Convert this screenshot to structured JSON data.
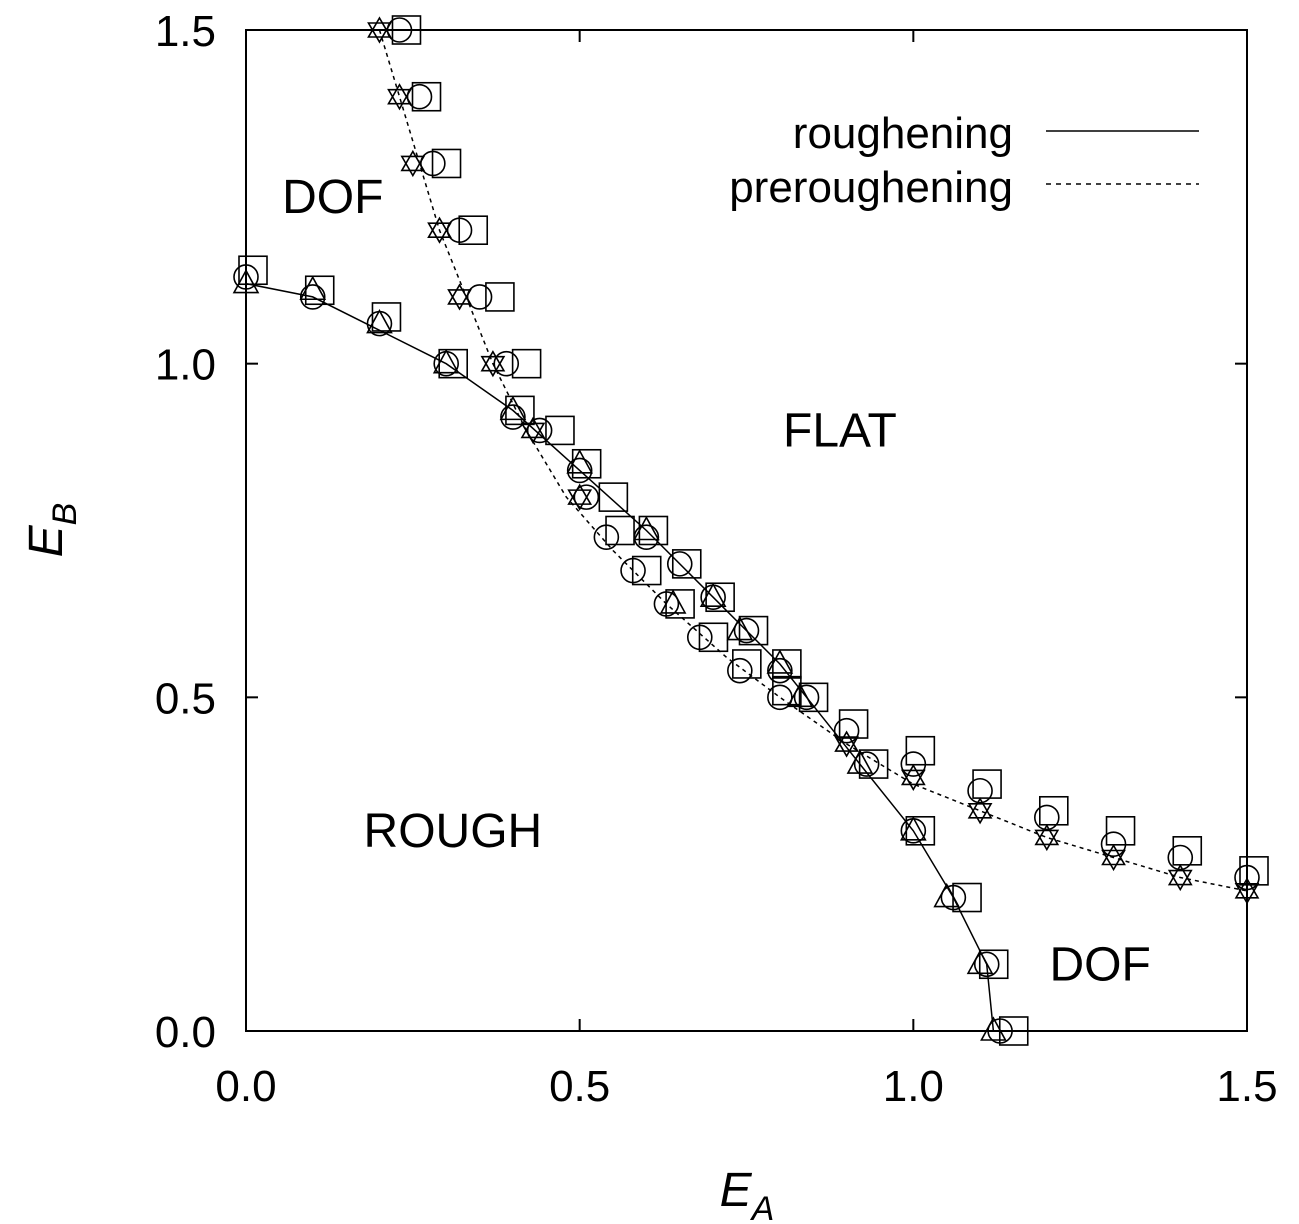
{
  "chart_data": {
    "type": "scatter",
    "xlabel": "E",
    "xlabel_sub": "A",
    "ylabel": "E",
    "ylabel_sub": "B",
    "xlim": [
      0,
      1.5
    ],
    "ylim": [
      0,
      1.5
    ],
    "x_ticks": [
      "0.0",
      "0.5",
      "1.0",
      "1.5"
    ],
    "y_ticks": [
      "0.0",
      "0.5",
      "1.0",
      "1.5"
    ],
    "grid": false,
    "legend_position": "top-right",
    "regions": [
      {
        "label": "DOF",
        "x": 0.13,
        "y": 1.25
      },
      {
        "label": "FLAT",
        "x": 0.89,
        "y": 0.9
      },
      {
        "label": "ROUGH",
        "x": 0.31,
        "y": 0.3
      },
      {
        "label": "DOF",
        "x": 1.28,
        "y": 0.1
      }
    ],
    "series": [
      {
        "name": "roughening",
        "line": "solid",
        "curve_x": [
          0.0,
          0.1,
          0.2,
          0.3,
          0.4,
          0.5,
          0.6,
          0.7,
          0.75,
          0.8,
          0.84,
          0.88,
          0.92,
          1.0,
          1.06,
          1.11,
          1.12
        ],
        "curve_y": [
          1.12,
          1.1,
          1.05,
          1.0,
          0.93,
          0.84,
          0.75,
          0.65,
          0.6,
          0.55,
          0.5,
          0.45,
          0.4,
          0.3,
          0.2,
          0.1,
          0.0
        ],
        "squares": [
          [
            0.0,
            1.14
          ],
          [
            0.1,
            1.11
          ],
          [
            0.2,
            1.07
          ],
          [
            0.3,
            1.0
          ],
          [
            0.4,
            0.93
          ],
          [
            0.5,
            0.85
          ],
          [
            0.6,
            0.75
          ],
          [
            0.65,
            0.7
          ],
          [
            0.7,
            0.65
          ],
          [
            0.75,
            0.6
          ],
          [
            0.8,
            0.55
          ],
          [
            0.84,
            0.5
          ],
          [
            0.93,
            0.4
          ],
          [
            1.0,
            0.3
          ],
          [
            1.07,
            0.2
          ],
          [
            1.11,
            0.1
          ],
          [
            1.14,
            0.0
          ]
        ],
        "circles": [
          [
            0.0,
            1.13
          ],
          [
            0.1,
            1.1
          ],
          [
            0.2,
            1.06
          ],
          [
            0.3,
            1.0
          ],
          [
            0.4,
            0.92
          ],
          [
            0.5,
            0.84
          ],
          [
            0.6,
            0.74
          ],
          [
            0.65,
            0.7
          ],
          [
            0.7,
            0.65
          ],
          [
            0.75,
            0.6
          ],
          [
            0.8,
            0.54
          ],
          [
            0.84,
            0.5
          ],
          [
            0.93,
            0.4
          ],
          [
            1.0,
            0.3
          ],
          [
            1.06,
            0.2
          ],
          [
            1.11,
            0.1
          ],
          [
            1.13,
            0.0
          ]
        ],
        "triangles": [
          [
            0.0,
            1.12
          ],
          [
            0.1,
            1.11
          ],
          [
            0.2,
            1.06
          ],
          [
            0.3,
            1.0
          ],
          [
            0.4,
            0.93
          ],
          [
            0.5,
            0.85
          ],
          [
            0.6,
            0.75
          ],
          [
            0.64,
            0.64
          ],
          [
            0.7,
            0.65
          ],
          [
            0.74,
            0.6
          ],
          [
            0.8,
            0.55
          ],
          [
            0.83,
            0.5
          ],
          [
            0.92,
            0.4
          ],
          [
            1.0,
            0.3
          ],
          [
            1.05,
            0.2
          ],
          [
            1.1,
            0.1
          ],
          [
            1.12,
            0.0
          ]
        ]
      },
      {
        "name": "preroughening",
        "line": "dashed",
        "curve_x": [
          0.2,
          0.23,
          0.26,
          0.29,
          0.33,
          0.37,
          0.42,
          0.48,
          0.55,
          0.63,
          0.72,
          0.8,
          0.9,
          1.0,
          1.1,
          1.2,
          1.3,
          1.4,
          1.5
        ],
        "curve_y": [
          1.5,
          1.4,
          1.3,
          1.2,
          1.1,
          1.0,
          0.9,
          0.8,
          0.72,
          0.64,
          0.56,
          0.5,
          0.43,
          0.37,
          0.33,
          0.29,
          0.26,
          0.23,
          0.21
        ],
        "squares": [
          [
            0.23,
            1.5
          ],
          [
            0.26,
            1.4
          ],
          [
            0.29,
            1.3
          ],
          [
            0.33,
            1.2
          ],
          [
            0.37,
            1.1
          ],
          [
            0.41,
            1.0
          ],
          [
            0.46,
            0.9
          ],
          [
            0.54,
            0.8
          ],
          [
            0.55,
            0.75
          ],
          [
            0.59,
            0.69
          ],
          [
            0.64,
            0.64
          ],
          [
            0.69,
            0.59
          ],
          [
            0.74,
            0.55
          ],
          [
            0.8,
            0.51
          ],
          [
            0.9,
            0.46
          ],
          [
            1.0,
            0.42
          ],
          [
            1.1,
            0.37
          ],
          [
            1.2,
            0.33
          ],
          [
            1.3,
            0.3
          ],
          [
            1.4,
            0.27
          ],
          [
            1.5,
            0.24
          ]
        ],
        "circles": [
          [
            0.23,
            1.5
          ],
          [
            0.26,
            1.4
          ],
          [
            0.28,
            1.3
          ],
          [
            0.32,
            1.2
          ],
          [
            0.35,
            1.1
          ],
          [
            0.39,
            1.0
          ],
          [
            0.44,
            0.9
          ],
          [
            0.51,
            0.8
          ],
          [
            0.54,
            0.74
          ],
          [
            0.58,
            0.69
          ],
          [
            0.63,
            0.64
          ],
          [
            0.68,
            0.59
          ],
          [
            0.74,
            0.54
          ],
          [
            0.8,
            0.5
          ],
          [
            0.9,
            0.45
          ],
          [
            1.0,
            0.4
          ],
          [
            1.1,
            0.36
          ],
          [
            1.2,
            0.32
          ],
          [
            1.3,
            0.28
          ],
          [
            1.4,
            0.26
          ],
          [
            1.5,
            0.23
          ]
        ],
        "stars": [
          [
            0.2,
            1.5
          ],
          [
            0.23,
            1.4
          ],
          [
            0.25,
            1.3
          ],
          [
            0.29,
            1.2
          ],
          [
            0.32,
            1.1
          ],
          [
            0.37,
            1.0
          ],
          [
            0.43,
            0.9
          ],
          [
            0.5,
            0.8
          ],
          [
            0.9,
            0.43
          ],
          [
            1.0,
            0.38
          ],
          [
            1.1,
            0.33
          ],
          [
            1.2,
            0.29
          ],
          [
            1.3,
            0.26
          ],
          [
            1.4,
            0.23
          ],
          [
            1.5,
            0.21
          ]
        ]
      }
    ]
  }
}
